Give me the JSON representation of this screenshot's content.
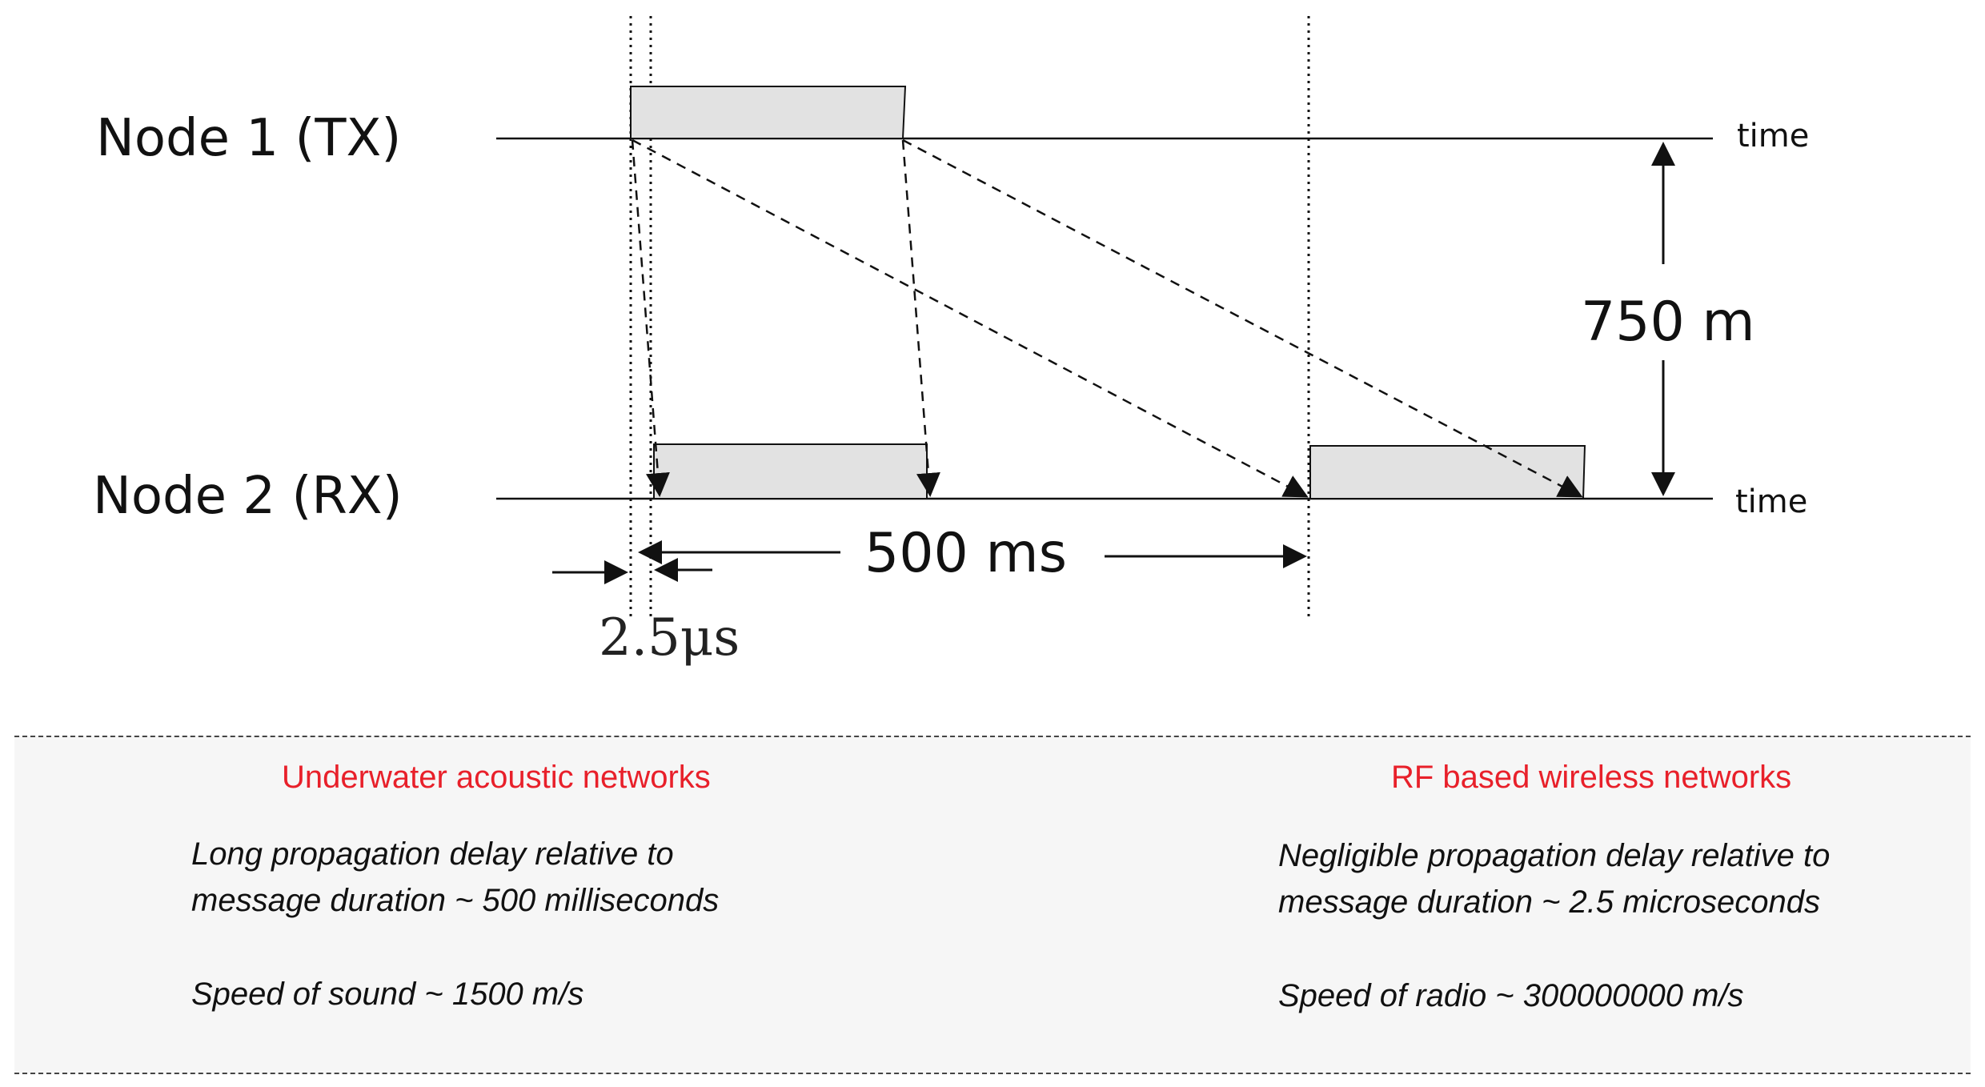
{
  "diagram": {
    "node1_label": "Node 1 (TX)",
    "node2_label": "Node 2 (RX)",
    "time_label_top": "time",
    "time_label_bottom": "time",
    "distance_label": "750 m",
    "delay_label_long": "500 ms",
    "delay_label_short": "2.5μs"
  },
  "comparison": {
    "left": {
      "title": "Underwater acoustic networks",
      "line1": "Long propagation delay relative to",
      "line2": "message duration ~ 500 milliseconds",
      "line3": "Speed of sound ~ 1500 m/s"
    },
    "right": {
      "title": "RF based wireless networks",
      "line1": "Negligible propagation delay relative to",
      "line2": "message duration ~ 2.5 microseconds",
      "line3": "Speed of radio ~ 300000000 m/s"
    }
  },
  "colors": {
    "accent_title": "#e8202a",
    "packet_fill": "#e2e2e2",
    "panel_background": "#f6f6f6"
  }
}
